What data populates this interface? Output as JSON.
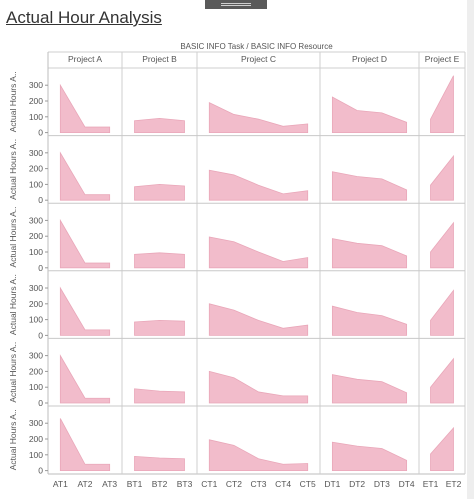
{
  "page": {
    "title": "Actual Hour Analysis"
  },
  "chart_data": {
    "type": "area",
    "header": "BASIC INFO Task / BASIC INFO Resource",
    "ylabel": "Actual Hours A..",
    "y_ticks": [
      0,
      100,
      200,
      300
    ],
    "ylim": [
      0,
      390
    ],
    "projects": [
      {
        "name": "Project A",
        "categories": [
          "AT1",
          "AT2",
          "AT3"
        ]
      },
      {
        "name": "Project B",
        "categories": [
          "BT1",
          "BT2",
          "BT3"
        ]
      },
      {
        "name": "Project C",
        "categories": [
          "CT1",
          "CT2",
          "CT3",
          "CT4",
          "CT5"
        ]
      },
      {
        "name": "Project D",
        "categories": [
          "DT1",
          "DT2",
          "DT3",
          "DT4"
        ]
      },
      {
        "name": "Project E",
        "categories": [
          "ET1",
          "ET2"
        ]
      }
    ],
    "rows": [
      [
        [
          300,
          35,
          35
        ],
        [
          75,
          90,
          75
        ],
        [
          190,
          115,
          85,
          40,
          55
        ],
        [
          225,
          140,
          125,
          65
        ],
        [
          85,
          360
        ]
      ],
      [
        [
          300,
          35,
          35
        ],
        [
          85,
          100,
          90
        ],
        [
          190,
          160,
          95,
          40,
          60
        ],
        [
          180,
          150,
          135,
          65
        ],
        [
          95,
          280
        ]
      ],
      [
        [
          300,
          30,
          30
        ],
        [
          85,
          95,
          85
        ],
        [
          195,
          165,
          100,
          40,
          65
        ],
        [
          185,
          155,
          140,
          75
        ],
        [
          100,
          285
        ]
      ],
      [
        [
          300,
          35,
          35
        ],
        [
          85,
          95,
          90
        ],
        [
          200,
          160,
          95,
          45,
          65
        ],
        [
          185,
          145,
          125,
          70
        ],
        [
          95,
          285
        ]
      ],
      [
        [
          300,
          30,
          30
        ],
        [
          90,
          75,
          70
        ],
        [
          200,
          160,
          70,
          45,
          45
        ],
        [
          180,
          150,
          135,
          65
        ],
        [
          100,
          280
        ]
      ],
      [
        [
          330,
          40,
          40
        ],
        [
          90,
          80,
          75
        ],
        [
          195,
          160,
          75,
          40,
          45
        ],
        [
          180,
          155,
          140,
          65
        ],
        [
          105,
          270
        ]
      ]
    ],
    "colors": {
      "fill": "#f2bccb",
      "line": "#e9a7b9"
    }
  }
}
